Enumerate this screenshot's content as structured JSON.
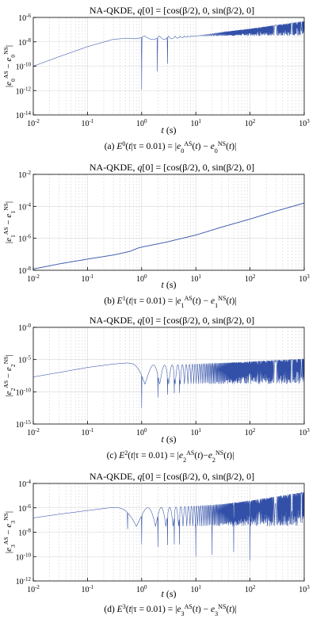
{
  "colors": {
    "series": "#3250a8",
    "grid": "#d6d6d6",
    "axis": "#000000",
    "background": "#ffffff"
  },
  "chart_data": [
    {
      "type": "line",
      "panel": "a",
      "title": "NA-QKDE, q[0] = [cos(β/2), 0, sin(β/2), 0]",
      "xlabel": "t (s)",
      "ylabel": "|e0AS − e0NS|",
      "caption": "(a) E0(t|τ = 0.01) = |e0AS(t) − e0NS(t)|",
      "xscale": "log",
      "yscale": "log",
      "xlim": [
        0.01,
        1000
      ],
      "ylim": [
        1e-14,
        1e-06
      ],
      "xticks": [
        "10^-2",
        "10^-1",
        "10^0",
        "10^1",
        "10^2",
        "10^3"
      ],
      "yticks": [
        "10^-14",
        "10^-12",
        "10^-10",
        "10^-8",
        "10^-6"
      ],
      "grid": true,
      "series": [
        {
          "kind": "oscillating",
          "x": [
            0.01,
            0.03,
            0.1,
            0.3,
            0.55,
            1,
            3,
            10,
            30,
            100,
            1000
          ],
          "envelope": [
            1e-10,
            6e-10,
            4e-09,
            1.6e-08,
            2e-08,
            1.5e-08,
            1.6e-08,
            3e-08,
            6e-08,
            1.2e-07,
            5e-07
          ],
          "deep_minima_x": [
            1.0,
            1.95,
            3.0
          ],
          "deep_minima_y": [
            1.2e-12,
            2e-11,
            6e-11
          ],
          "oscillation_start": 0.62,
          "lower_band": 3e-08
        }
      ]
    },
    {
      "type": "line",
      "panel": "b",
      "title": "NA-QKDE, q[0] = [cos(β/2), 0, sin(β/2), 0]",
      "xlabel": "t (s)",
      "ylabel": "|e1AS − e1NS|",
      "caption": "(b) E1(t|τ = 0.01) = |e1AS(t) − e1NS(t)|",
      "xscale": "log",
      "yscale": "log",
      "xlim": [
        0.01,
        1000
      ],
      "ylim": [
        1e-08,
        0.01
      ],
      "xticks": [
        "10^-2",
        "10^-1",
        "10^0",
        "10^1",
        "10^2",
        "10^3"
      ],
      "yticks": [
        "10^-8",
        "10^-6",
        "10^-4",
        "10^-2"
      ],
      "grid": true,
      "series": [
        {
          "kind": "smooth",
          "x": [
            0.01,
            0.03,
            0.1,
            0.3,
            0.6,
            0.9,
            1.2,
            2,
            3,
            10,
            30,
            100,
            300,
            1000
          ],
          "y": [
            1.2e-08,
            2.5e-08,
            5e-08,
            9e-08,
            1.5e-07,
            2.6e-07,
            3.2e-07,
            4.5e-07,
            6e-07,
            1.6e-06,
            5e-06,
            1.6e-05,
            5e-05,
            0.00016
          ]
        }
      ]
    },
    {
      "type": "line",
      "panel": "c",
      "title": "NA-QKDE, q[0] = [cos(β/2), 0, sin(β/2), 0]",
      "xlabel": "t (s)",
      "ylabel": "|e2AS − e2NS|",
      "caption": "(c) E2(t|τ = 0.01)=|e2AS(t)−e2NS(t)|",
      "xscale": "log",
      "yscale": "log",
      "xlim": [
        0.01,
        1000
      ],
      "ylim": [
        1e-15,
        1
      ],
      "xticks": [
        "10^-2",
        "10^-1",
        "10^0",
        "10^1",
        "10^2",
        "10^3"
      ],
      "yticks": [
        "10^-15",
        "10^-10",
        "10^-5",
        "10^-0"
      ],
      "grid": true,
      "series": [
        {
          "kind": "oscillating",
          "x": [
            0.01,
            0.03,
            0.1,
            0.3,
            0.55,
            1,
            3,
            10,
            30,
            100,
            1000
          ],
          "envelope": [
            2e-08,
            1e-07,
            6e-07,
            2e-06,
            3e-06,
            1.4e-06,
            1.4e-06,
            2e-06,
            3e-06,
            5e-06,
            1.4e-05
          ],
          "deep_minima_x": [
            1.0,
            2.0,
            3.0,
            4.0,
            5.0
          ],
          "deep_minima_y": [
            3e-13,
            5e-12,
            1e-11,
            2e-11,
            3e-11
          ],
          "oscillation_start": 0.65,
          "lower_band": 1.5e-09
        }
      ]
    },
    {
      "type": "line",
      "panel": "d",
      "title": "NA-QKDE, q[0] = [cos(β/2), 0, sin(β/2), 0]",
      "xlabel": "t (s)",
      "ylabel": "|e3AS − e3NS|",
      "caption": "(d) E3(t|τ = 0.01) = |e3AS(t) − e3NS(t)|",
      "xscale": "log",
      "yscale": "log",
      "xlim": [
        0.01,
        1000
      ],
      "ylim": [
        1e-12,
        0.0001
      ],
      "xticks": [
        "10^-2",
        "10^-1",
        "10^0",
        "10^1",
        "10^2",
        "10^3"
      ],
      "yticks": [
        "10^-12",
        "10^-10",
        "10^-8",
        "10^-6",
        "10^-4"
      ],
      "grid": true,
      "series": [
        {
          "kind": "oscillating",
          "x": [
            0.01,
            0.03,
            0.1,
            0.25,
            0.5,
            1,
            3,
            10,
            30,
            100,
            1000
          ],
          "envelope": [
            1.5e-07,
            3e-07,
            6e-07,
            1e-06,
            1.2e-06,
            1e-06,
            1.1e-06,
            1.4e-06,
            2e-06,
            4e-06,
            2e-05
          ],
          "deep_minima_x": [
            0.55,
            1.0,
            2.0,
            3.0,
            4.0,
            5.0,
            10.0,
            20.0,
            50.0,
            100.0
          ],
          "deep_minima_y": [
            1e-08,
            1e-09,
            3e-10,
            3e-10,
            4e-10,
            5e-10,
            1e-10,
            5e-11,
            1e-10,
            5e-11
          ],
          "oscillation_start": 0.3,
          "lower_band": 3e-08
        }
      ]
    }
  ]
}
